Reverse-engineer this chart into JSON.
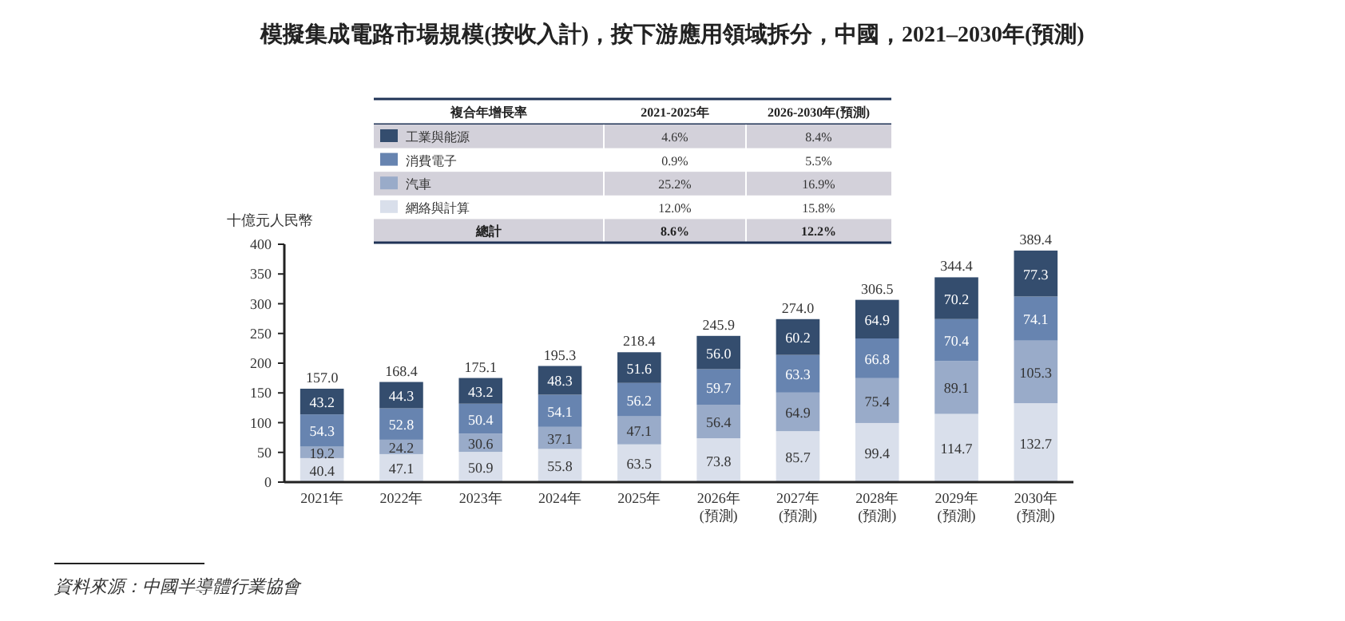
{
  "chart_data": {
    "type": "bar",
    "stacked": true,
    "title": "模擬集成電路市場規模(按收入計)，按下游應用領域拆分，中國，2021–2030年(預測)",
    "ylabel": "十億元人民幣",
    "categories": [
      "2021年",
      "2022年",
      "2023年",
      "2024年",
      "2025年",
      "2026年\n(預測)",
      "2027年\n(預測)",
      "2028年\n(預測)",
      "2029年\n(預測)",
      "2030年\n(預測)"
    ],
    "series": [
      {
        "name": "網絡與計算",
        "color": "#d9dfeb",
        "values": [
          40.4,
          47.1,
          50.9,
          55.8,
          63.5,
          73.8,
          85.7,
          99.4,
          114.7,
          132.7
        ]
      },
      {
        "name": "汽車",
        "color": "#99abc9",
        "values": [
          19.2,
          24.2,
          30.6,
          37.1,
          47.1,
          56.4,
          64.9,
          75.4,
          89.1,
          105.3
        ]
      },
      {
        "name": "消費電子",
        "color": "#6784b0",
        "values": [
          54.3,
          52.8,
          50.4,
          54.1,
          56.2,
          59.7,
          63.3,
          66.8,
          70.4,
          74.1
        ]
      },
      {
        "name": "工業與能源",
        "color": "#344d6e",
        "values": [
          43.2,
          44.3,
          43.2,
          48.3,
          51.6,
          56.0,
          60.2,
          64.9,
          70.2,
          77.3
        ],
        "value_labels": [
          "43.2",
          "44.3",
          "43.2",
          "48.3",
          "51.6",
          "56.0",
          "60.2",
          "64.9",
          "70.2",
          "77.3"
        ]
      }
    ],
    "totals": [
      "157.0",
      "168.4",
      "175.1",
      "195.3",
      "218.4",
      "245.9",
      "274.0",
      "306.5",
      "344.4",
      "389.4"
    ],
    "data_labels": true,
    "ylim": [
      0,
      400
    ],
    "yticks": [
      0,
      50,
      100,
      150,
      200,
      250,
      300,
      350,
      400
    ],
    "grid": false,
    "legend": "top",
    "annotations": [
      "複合年增長率",
      "2021-2025年",
      "2026-2030年(預測)",
      "4.6%",
      "8.4%",
      "0.9%",
      "5.5%",
      "25.2%",
      "16.9%",
      "12.0%",
      "15.8%",
      "總計",
      "8.6%",
      "12.2%",
      "資料來源：中國半導體行業協會"
    ]
  }
}
